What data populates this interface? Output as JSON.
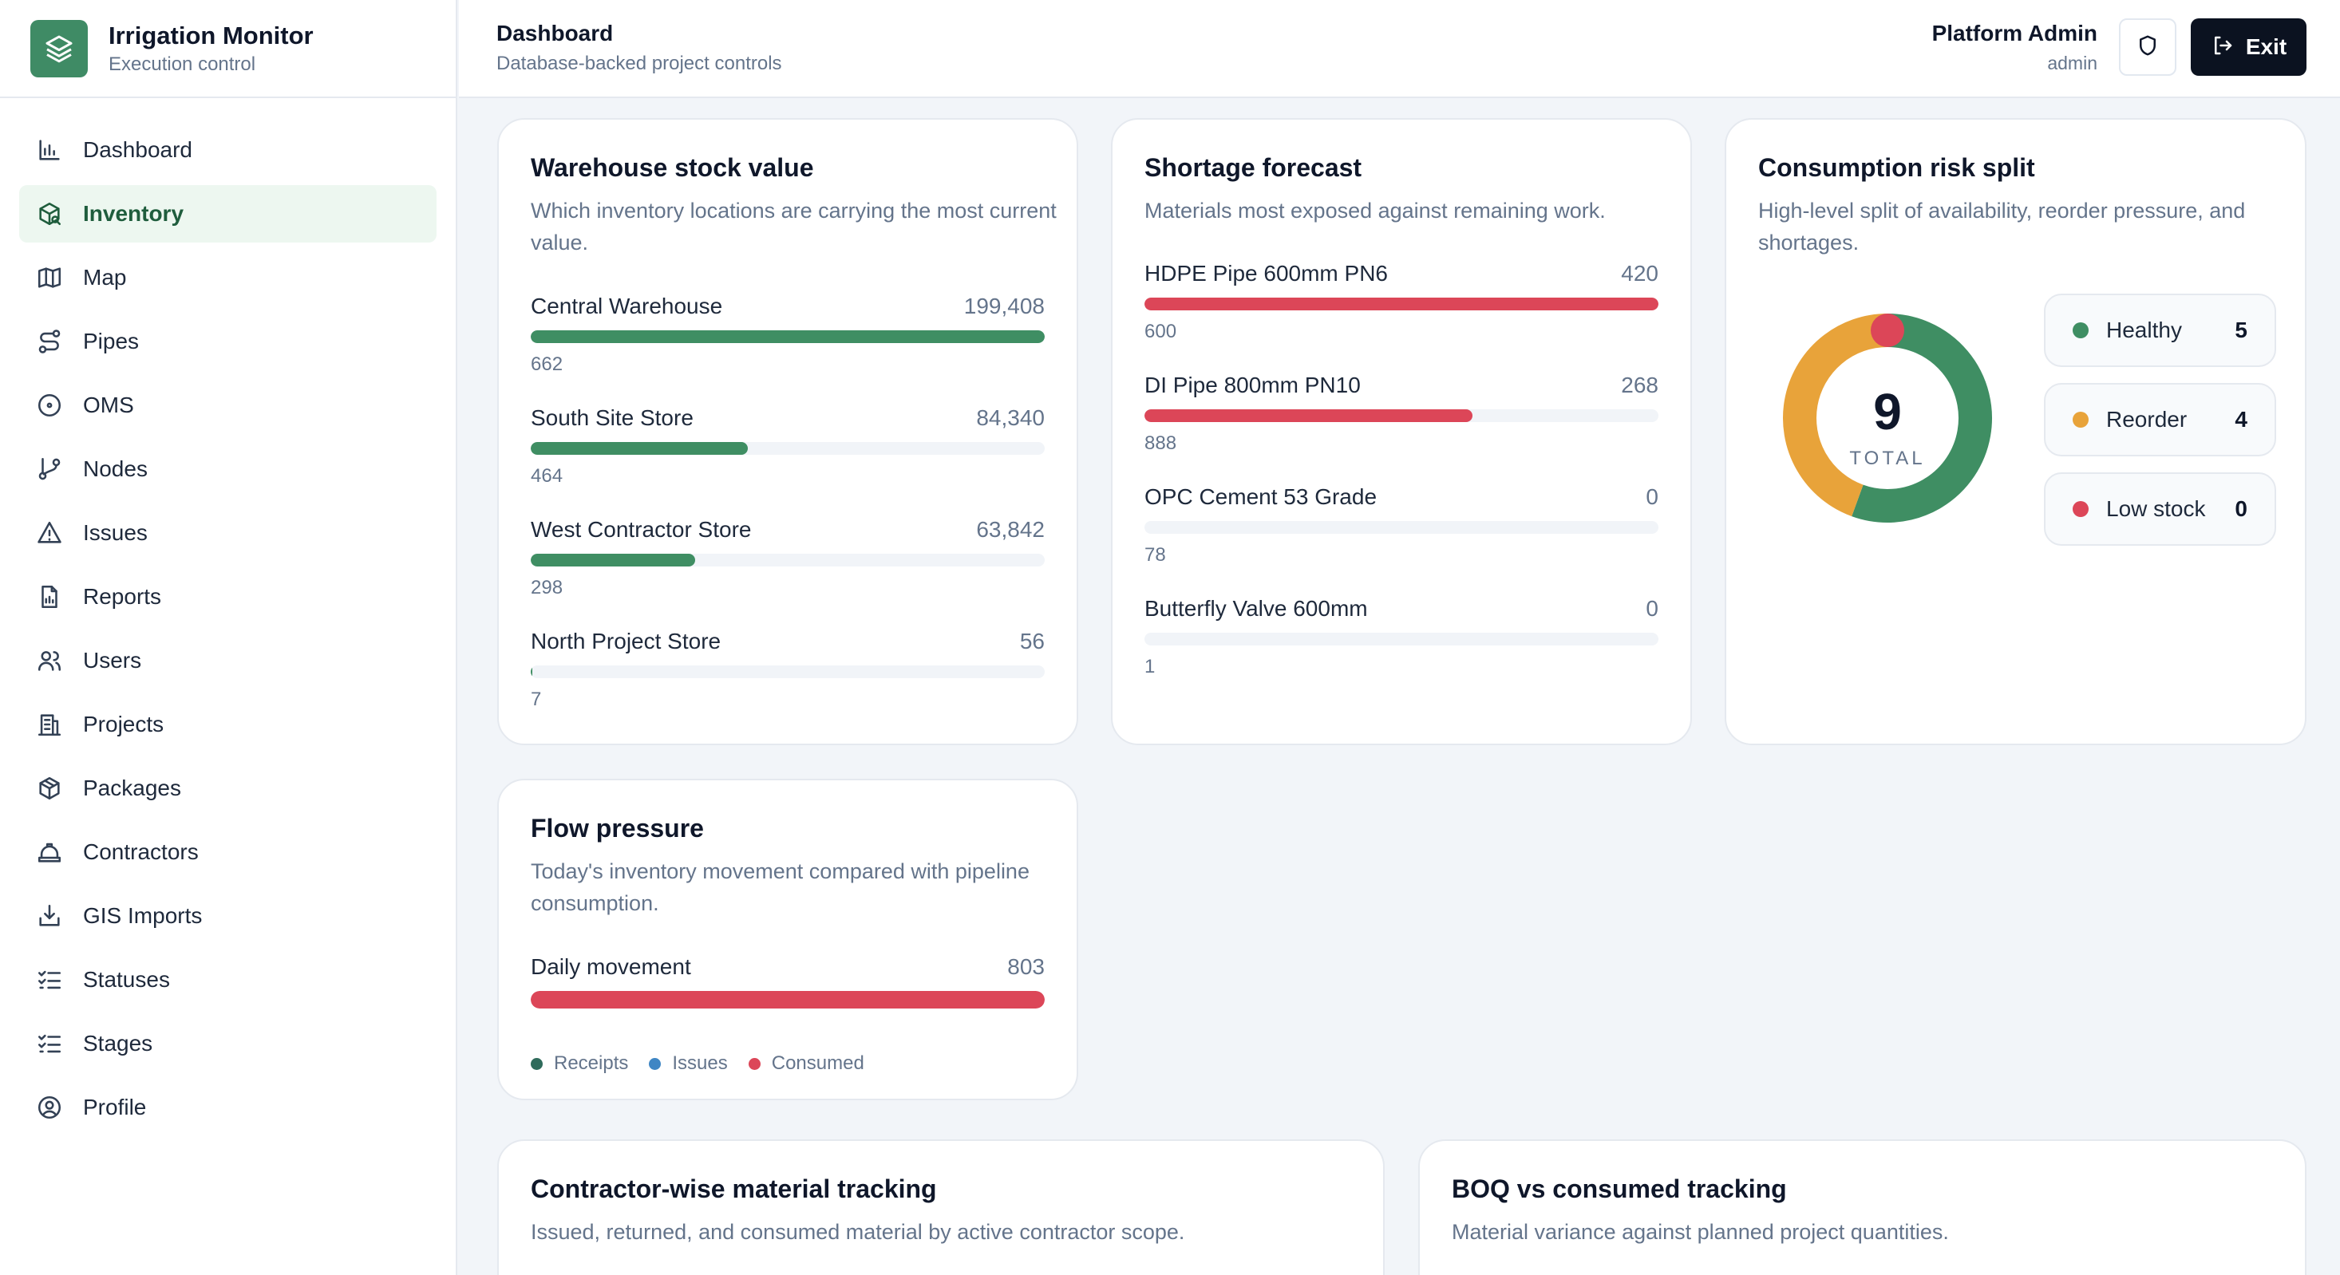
{
  "brand": {
    "title": "Irrigation Monitor",
    "subtitle": "Execution control"
  },
  "nav": [
    {
      "label": "Dashboard",
      "icon": "bar-chart-icon",
      "active": false
    },
    {
      "label": "Inventory",
      "icon": "package-search-icon",
      "active": true
    },
    {
      "label": "Map",
      "icon": "map-icon",
      "active": false
    },
    {
      "label": "Pipes",
      "icon": "route-icon",
      "active": false
    },
    {
      "label": "OMS",
      "icon": "target-icon",
      "active": false
    },
    {
      "label": "Nodes",
      "icon": "git-branch-icon",
      "active": false
    },
    {
      "label": "Issues",
      "icon": "alert-triangle-icon",
      "active": false
    },
    {
      "label": "Reports",
      "icon": "file-chart-icon",
      "active": false
    },
    {
      "label": "Users",
      "icon": "users-icon",
      "active": false
    },
    {
      "label": "Projects",
      "icon": "building-icon",
      "active": false
    },
    {
      "label": "Packages",
      "icon": "box-icon",
      "active": false
    },
    {
      "label": "Contractors",
      "icon": "hard-hat-icon",
      "active": false
    },
    {
      "label": "GIS Imports",
      "icon": "import-icon",
      "active": false
    },
    {
      "label": "Statuses",
      "icon": "list-checks-icon",
      "active": false
    },
    {
      "label": "Stages",
      "icon": "list-checks-icon",
      "active": false
    },
    {
      "label": "Profile",
      "icon": "user-circle-icon",
      "active": false
    }
  ],
  "header": {
    "title": "Dashboard",
    "subtitle": "Database-backed project controls",
    "user_name": "Platform Admin",
    "user_role": "admin",
    "exit_label": "Exit"
  },
  "colors": {
    "green": "#3f8e63",
    "red": "#dc4658",
    "orange": "#e8a33a",
    "blue": "#3f86c4",
    "teal": "#2f6b5b"
  },
  "warehouse": {
    "title": "Warehouse stock value",
    "description": "Which inventory locations are carrying the most current value.",
    "rows": [
      {
        "label": "Central Warehouse",
        "value": "199,408",
        "sub": "662",
        "fraction": 1.0
      },
      {
        "label": "South Site Store",
        "value": "84,340",
        "sub": "464",
        "fraction": 0.423
      },
      {
        "label": "West Contractor Store",
        "value": "63,842",
        "sub": "298",
        "fraction": 0.32
      },
      {
        "label": "North Project Store",
        "value": "56",
        "sub": "7",
        "fraction": 0.003
      }
    ]
  },
  "shortage": {
    "title": "Shortage forecast",
    "description": "Materials most exposed against remaining work.",
    "rows": [
      {
        "label": "HDPE Pipe 600mm PN6",
        "value": "420",
        "sub": "600",
        "fraction": 1.0
      },
      {
        "label": "DI Pipe 800mm PN10",
        "value": "268",
        "sub": "888",
        "fraction": 0.638
      },
      {
        "label": "OPC Cement 53 Grade",
        "value": "0",
        "sub": "78",
        "fraction": 0
      },
      {
        "label": "Butterfly Valve 600mm",
        "value": "0",
        "sub": "1",
        "fraction": 0
      }
    ]
  },
  "risk": {
    "title": "Consumption risk split",
    "description": "High-level split of availability, reorder pressure, and shortages.",
    "total": "9",
    "total_label": "TOTAL",
    "items": [
      {
        "name": "Healthy",
        "count": "5",
        "value": 5,
        "color": "#3f8e63"
      },
      {
        "name": "Reorder",
        "count": "4",
        "value": 4,
        "color": "#e8a33a"
      },
      {
        "name": "Low stock",
        "count": "0",
        "value": 0,
        "color": "#dc4658"
      }
    ]
  },
  "flow": {
    "title": "Flow pressure",
    "description": "Today's inventory movement compared with pipeline consumption.",
    "label": "Daily movement",
    "value": "803",
    "fraction": 1.0,
    "legend": [
      {
        "name": "Receipts",
        "color": "#2f6b5b"
      },
      {
        "name": "Issues",
        "color": "#3f86c4"
      },
      {
        "name": "Consumed",
        "color": "#dc4658"
      }
    ]
  },
  "contractor": {
    "title": "Contractor-wise material tracking",
    "description": "Issued, returned, and consumed material by active contractor scope."
  },
  "boq": {
    "title": "BOQ vs consumed tracking",
    "description": "Material variance against planned project quantities."
  }
}
